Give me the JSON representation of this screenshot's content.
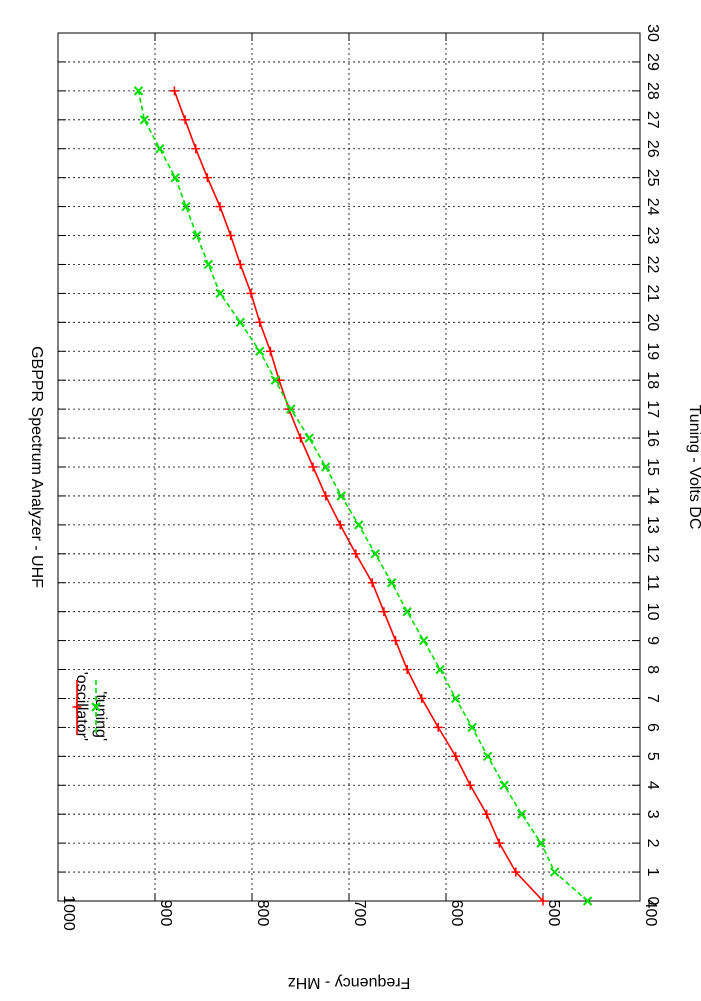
{
  "chart_data": {
    "type": "line",
    "orientation": "rotated-90-clockwise",
    "title": "GBPPR Spectrum Analyzer  -  UHF",
    "xlabel": "Tuning  -  Volts DC",
    "ylabel": "Frequency  -  MHz",
    "xlim": [
      0,
      30
    ],
    "ylim": [
      400,
      1000
    ],
    "xticks": [
      "0",
      "1",
      "2",
      "3",
      "4",
      "5",
      "6",
      "7",
      "8",
      "9",
      "10",
      "11",
      "12",
      "13",
      "14",
      "15",
      "16",
      "17",
      "18",
      "19",
      "20",
      "21",
      "22",
      "23",
      "24",
      "25",
      "26",
      "27",
      "28",
      "29",
      "30"
    ],
    "yticks": [
      "400",
      "500",
      "600",
      "700",
      "800",
      "900",
      "1000"
    ],
    "grid": true,
    "legend_position": "bottom-left",
    "x": [
      0,
      1,
      2,
      3,
      4,
      5,
      6,
      7,
      8,
      9,
      10,
      11,
      12,
      13,
      14,
      15,
      16,
      17,
      18,
      19,
      20,
      21,
      22,
      23,
      24,
      25,
      26,
      27,
      28
    ],
    "series": [
      {
        "name": "'oscillator'",
        "color": "#ff0000",
        "marker": "plus",
        "line": "solid",
        "values": [
          500,
          528,
          545,
          558,
          575,
          590,
          608,
          625,
          640,
          652,
          664,
          676,
          693,
          709,
          724,
          737,
          750,
          762,
          772,
          781,
          792,
          801,
          812,
          822,
          833,
          846,
          858,
          869,
          880
        ]
      },
      {
        "name": "'tuning'",
        "color": "#00dd00",
        "marker": "x",
        "line": "dashed",
        "values": [
          454,
          488,
          502,
          522,
          540,
          557,
          573,
          590,
          606,
          623,
          640,
          656,
          673,
          690,
          708,
          724,
          741,
          760,
          776,
          792,
          812,
          833,
          845,
          857,
          868,
          879,
          895,
          911,
          917
        ]
      }
    ]
  }
}
